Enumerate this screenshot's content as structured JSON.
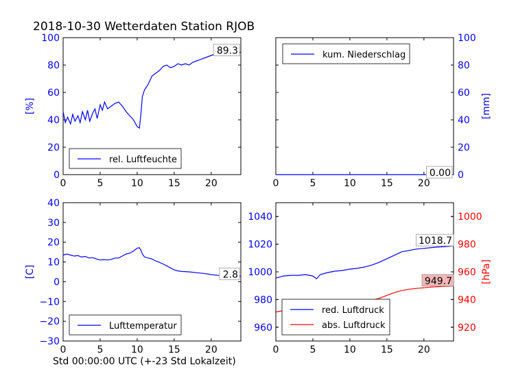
{
  "figure": {
    "title": "2018-10-30 Wetterdaten Station RJOB",
    "xlabel": "Std 00:00:00 UTC (+-23 Std Lokalzeit)"
  },
  "colors": {
    "blue": "#0000ff",
    "red": "#ff0000",
    "label_box_red": "#f4b6b6"
  },
  "chart_data": [
    {
      "type": "line",
      "id": "humidity",
      "ylabel": "[%]",
      "ylabel_color": "#0000ff",
      "xlim": [
        0,
        24
      ],
      "ylim": [
        0,
        100
      ],
      "xticks": [
        0,
        5,
        10,
        15,
        20
      ],
      "yticks": [
        0,
        20,
        40,
        60,
        80,
        100
      ],
      "legend": "lower-left",
      "last_value_label": "89.3",
      "series": [
        {
          "name": "rel. Luftfeuchte",
          "color": "#0000ff",
          "x": [
            0,
            0.3,
            0.6,
            1.0,
            1.3,
            1.6,
            2.0,
            2.3,
            2.6,
            3.0,
            3.3,
            3.6,
            4.0,
            4.3,
            4.6,
            5.0,
            5.3,
            5.6,
            6.0,
            6.5,
            7.0,
            7.5,
            8.0,
            8.5,
            9.0,
            9.5,
            10.0,
            10.3,
            10.5,
            10.7,
            11.0,
            11.5,
            12.0,
            12.5,
            13.0,
            13.5,
            14.0,
            14.5,
            15.0,
            15.5,
            16.0,
            16.5,
            17.0,
            17.5,
            18.0,
            18.5,
            19.0,
            19.5,
            20.0,
            20.5,
            21.0,
            21.5,
            22.0,
            22.5,
            23.0,
            23.5,
            24.0
          ],
          "y": [
            46,
            38,
            42,
            37,
            44,
            39,
            43,
            38,
            46,
            40,
            47,
            39,
            45,
            48,
            41,
            51,
            47,
            53,
            48,
            50,
            52,
            53,
            50,
            46,
            43,
            40,
            35,
            34,
            44,
            57,
            62,
            66,
            72,
            74,
            76,
            79,
            80,
            78,
            79,
            81,
            80,
            81,
            80,
            82,
            83,
            84,
            85,
            86,
            87,
            88,
            88.5,
            88.8,
            89,
            89.1,
            89.2,
            89.3,
            89.3
          ]
        }
      ]
    },
    {
      "type": "line",
      "id": "precipitation",
      "ylabel": "[mm]",
      "ylabel_color": "#0000ff",
      "xlim": [
        0,
        24
      ],
      "ylim": [
        0,
        100
      ],
      "xticks": [
        0,
        5,
        10,
        15,
        20
      ],
      "yticks": [
        0,
        20,
        40,
        60,
        80,
        100
      ],
      "yaxis_side": "right",
      "legend": "top-left",
      "last_value_label": "0.00",
      "series": [
        {
          "name": "kum. Niederschlag",
          "color": "#0000ff",
          "x": [
            0,
            24
          ],
          "y": [
            0,
            0
          ]
        }
      ]
    },
    {
      "type": "line",
      "id": "temperature",
      "ylabel": "[C]",
      "ylabel_color": "#0000ff",
      "xlim": [
        0,
        24
      ],
      "ylim": [
        -30,
        40
      ],
      "xticks": [
        0,
        5,
        10,
        15,
        20
      ],
      "yticks": [
        -30,
        -20,
        -10,
        0,
        10,
        20,
        30,
        40
      ],
      "legend": "lower-left",
      "last_value_label": "2.8",
      "series": [
        {
          "name": "Lufttemperatur",
          "color": "#0000ff",
          "x": [
            0,
            0.5,
            1.0,
            1.5,
            2.0,
            2.5,
            3.0,
            3.5,
            4.0,
            4.5,
            5.0,
            5.5,
            6.0,
            6.5,
            7.0,
            7.5,
            8.0,
            8.5,
            9.0,
            9.5,
            10.0,
            10.3,
            10.5,
            10.7,
            11.0,
            11.5,
            12.0,
            12.5,
            13.0,
            13.5,
            14.0,
            14.5,
            15.0,
            15.5,
            16.0,
            17.0,
            18.0,
            19.0,
            20.0,
            21.0,
            22.0,
            23.0,
            24.0
          ],
          "y": [
            13.5,
            14,
            13.5,
            13,
            13.2,
            12.5,
            12.8,
            12,
            12.2,
            11.5,
            11,
            11.2,
            11,
            11.3,
            12,
            12,
            13,
            14,
            14.5,
            15.5,
            17,
            17.2,
            16,
            14,
            12.5,
            12,
            11.5,
            10.5,
            9.8,
            9,
            8,
            7,
            6,
            5.5,
            5.2,
            5,
            4.6,
            4.2,
            3.6,
            3.2,
            3,
            2.9,
            2.8
          ]
        }
      ]
    },
    {
      "type": "line",
      "id": "pressure",
      "ylabel": "[hPa]",
      "ylabel_color": "#ff0000",
      "xlim": [
        0,
        24
      ],
      "ylim_left": [
        950,
        1050
      ],
      "ylim_right": [
        910,
        1010
      ],
      "xticks": [
        0,
        5,
        10,
        15,
        20
      ],
      "yticks_left": [
        960,
        980,
        1000,
        1020,
        1040
      ],
      "yticks_right": [
        920,
        940,
        960,
        980,
        1000
      ],
      "legend": "lower-left",
      "series": [
        {
          "name": "red. Luftdruck",
          "color": "#0000ff",
          "axis": "left",
          "last_value_label": "1018.7",
          "x": [
            0,
            1,
            2,
            3,
            4,
            5,
            5.5,
            6,
            7,
            8,
            9,
            10,
            11,
            12,
            13,
            14,
            15,
            16,
            17,
            18,
            19,
            20,
            21,
            22,
            23,
            24
          ],
          "y": [
            995.5,
            997,
            997.5,
            997.5,
            998,
            997,
            995,
            998,
            999.5,
            1000.5,
            1001,
            1002,
            1002.5,
            1003.5,
            1005,
            1007,
            1009.5,
            1012,
            1014.5,
            1015.5,
            1016.5,
            1017,
            1017.5,
            1018,
            1018.3,
            1018.7
          ]
        },
        {
          "name": "abs. Luftdruck",
          "color": "#ff0000",
          "axis": "right",
          "last_value_label": "949.7",
          "label_box_color": "#f4b6b6",
          "x": [
            0,
            1,
            2,
            3,
            4,
            5,
            5.5,
            6,
            7,
            8,
            9,
            10,
            11,
            12,
            13,
            14,
            15,
            16,
            17,
            18,
            19,
            20,
            21,
            22,
            23,
            24
          ],
          "y": [
            931,
            932,
            932.5,
            932.5,
            932.5,
            932,
            930,
            932.5,
            934,
            935,
            936,
            937,
            937.5,
            938,
            939.5,
            941,
            943,
            945,
            946.5,
            947.5,
            948,
            948.5,
            949,
            949.3,
            949.5,
            949.7
          ]
        }
      ]
    }
  ]
}
